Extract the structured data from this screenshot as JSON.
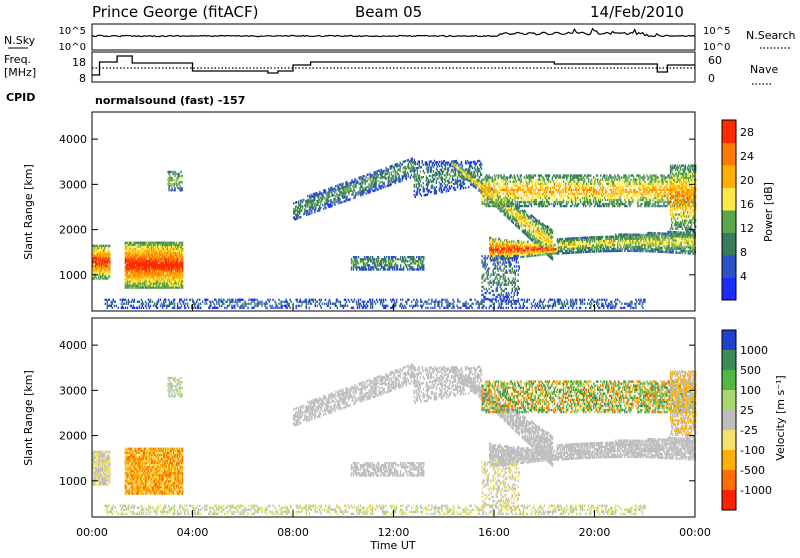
{
  "header": {
    "station": "Prince George (fitACF)",
    "beam": "Beam 05",
    "date": "14/Feb/2010"
  },
  "noise_panel": {
    "left_label": "N.Sky",
    "right_label": "N.Search",
    "top_tick": "10^5",
    "bottom_tick": "10^0"
  },
  "freq_panel": {
    "left_label_line1": "Freq.",
    "left_label_line2": "[MHz]",
    "right_label": "Nave",
    "left_ticks": [
      "18",
      "8"
    ],
    "right_ticks": [
      "60",
      "0"
    ]
  },
  "cpid": {
    "label": "CPID",
    "program": "normalsound (fast) -157"
  },
  "colors": {
    "power_scale": [
      "#1a2cff",
      "#2d51c8",
      "#3a7c5a",
      "#5aa64a",
      "#ffe84a",
      "#ffb000",
      "#ff7a00",
      "#ff2a00"
    ],
    "velocity_scale": [
      "#2040d0",
      "#3a8a5a",
      "#4fb840",
      "#a8d870",
      "#bebebe",
      "#f2e26a",
      "#ffb000",
      "#ff7000",
      "#ff2000"
    ],
    "ground_scatter": "#bebebe"
  },
  "chart_data": [
    {
      "type": "heatmap",
      "name": "power",
      "ylabel": "Slant Range [km]",
      "yticks": [
        "1000",
        "2000",
        "3000",
        "4000"
      ],
      "ylim": [
        200,
        4600
      ],
      "xlim": [
        0,
        24
      ],
      "colorbar_label": "Power [dB]",
      "colorbar_ticks": [
        "4",
        "8",
        "12",
        "16",
        "20",
        "24",
        "28"
      ],
      "colorbar_range": [
        0,
        30
      ]
    },
    {
      "type": "heatmap",
      "name": "velocity",
      "xlabel": "Time UT",
      "xticks": [
        "00:00",
        "04:00",
        "08:00",
        "12:00",
        "16:00",
        "20:00",
        "00:00"
      ],
      "ylabel": "Slant Range [km]",
      "yticks": [
        "1000",
        "2000",
        "3000",
        "4000"
      ],
      "ylim": [
        200,
        4600
      ],
      "xlim": [
        0,
        24
      ],
      "colorbar_label": "Velocity [m s⁻¹]",
      "colorbar_ticks": [
        "1000",
        "500",
        "100",
        "25",
        "-25",
        "-100",
        "-500",
        "-1000"
      ]
    }
  ]
}
